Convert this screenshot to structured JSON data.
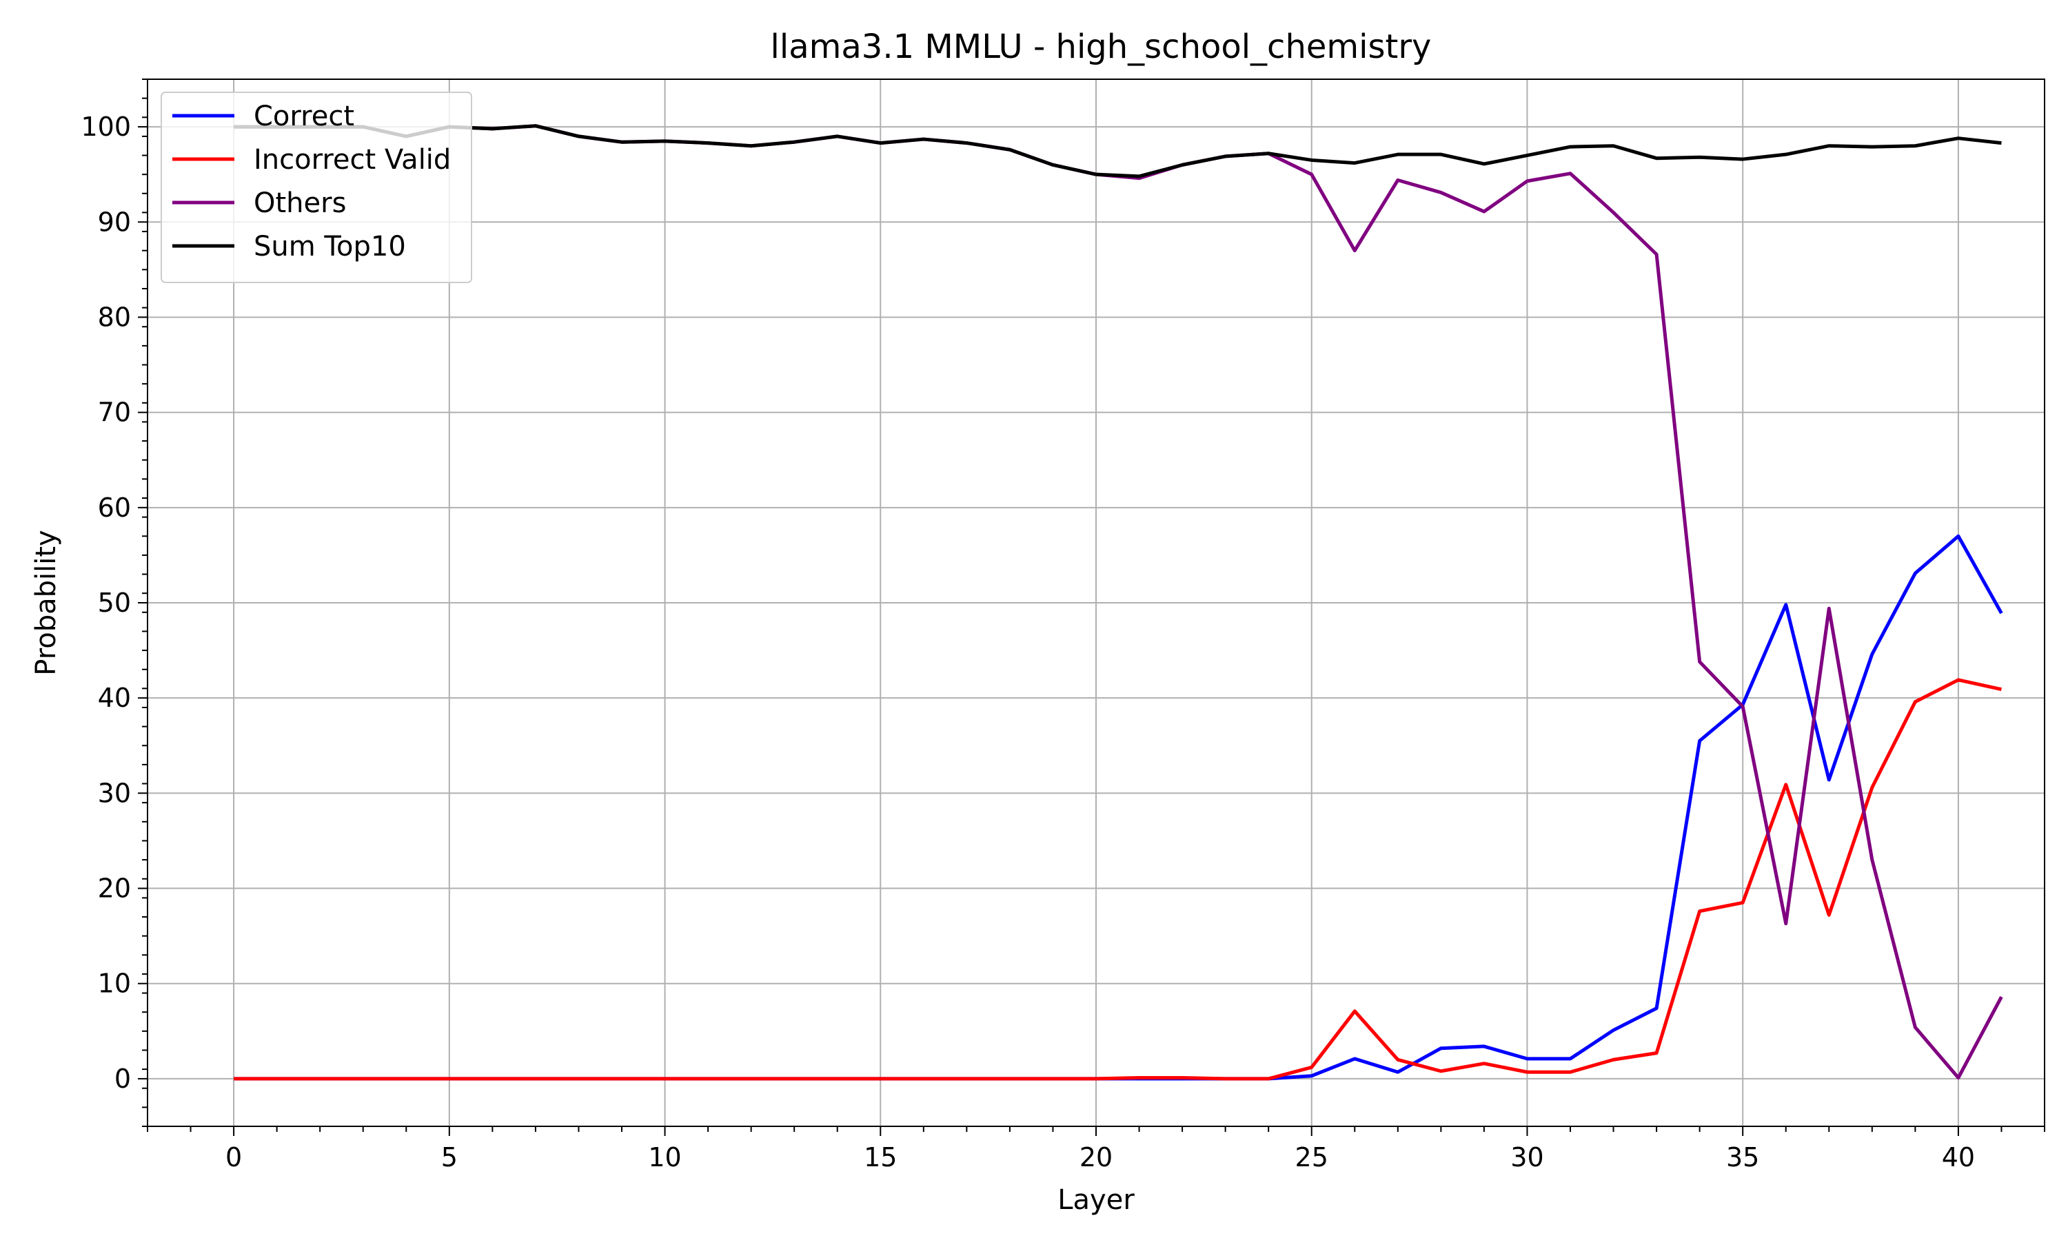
{
  "chart_data": {
    "type": "line",
    "title": "llama3.1 MMLU - high_school_chemistry",
    "xlabel": "Layer",
    "ylabel": "Probability",
    "xlim": [
      -2,
      42
    ],
    "ylim": [
      -5,
      105
    ],
    "xticks": [
      0,
      5,
      10,
      15,
      20,
      25,
      30,
      35,
      40
    ],
    "yticks": [
      0,
      10,
      20,
      30,
      40,
      50,
      60,
      70,
      80,
      90,
      100
    ],
    "grid": true,
    "legend_position": "top-left",
    "x": [
      0,
      1,
      2,
      3,
      4,
      5,
      6,
      7,
      8,
      9,
      10,
      11,
      12,
      13,
      14,
      15,
      16,
      17,
      18,
      19,
      20,
      21,
      22,
      23,
      24,
      25,
      26,
      27,
      28,
      29,
      30,
      31,
      32,
      33,
      34,
      35,
      36,
      37,
      38,
      39,
      40,
      41
    ],
    "series": [
      {
        "name": "Correct",
        "color": "#0000ff",
        "values": [
          0,
          0,
          0,
          0,
          0,
          0,
          0,
          0,
          0,
          0,
          0,
          0,
          0,
          0,
          0,
          0,
          0,
          0,
          0,
          0,
          0,
          0,
          0,
          0,
          0,
          0.3,
          2.1,
          0.7,
          3.2,
          3.4,
          2.1,
          2.1,
          5.1,
          7.4,
          35.5,
          39.3,
          49.8,
          31.4,
          44.6,
          53.1,
          57.0,
          48.9
        ]
      },
      {
        "name": "Incorrect Valid",
        "color": "#ff0000",
        "values": [
          0,
          0,
          0,
          0,
          0,
          0,
          0,
          0,
          0,
          0,
          0,
          0,
          0,
          0,
          0,
          0,
          0,
          0,
          0,
          0,
          0,
          0.1,
          0.1,
          0,
          0,
          1.2,
          7.1,
          2.0,
          0.8,
          1.6,
          0.7,
          0.7,
          2.0,
          2.7,
          17.6,
          18.5,
          30.9,
          17.2,
          30.6,
          39.6,
          41.9,
          40.9
        ]
      },
      {
        "name": "Others",
        "color": "#800080",
        "values": [
          100,
          100,
          100,
          100,
          99.0,
          100,
          99.8,
          100.1,
          99.0,
          98.4,
          98.5,
          98.3,
          98.0,
          98.4,
          99.0,
          98.3,
          98.7,
          98.3,
          97.6,
          96.0,
          95.0,
          94.6,
          96.0,
          96.9,
          97.2,
          95.0,
          87.0,
          94.4,
          93.1,
          91.1,
          94.3,
          95.1,
          91.0,
          86.6,
          43.8,
          39.1,
          16.3,
          49.4,
          23.0,
          5.4,
          0.1,
          8.6
        ]
      },
      {
        "name": "Sum Top10",
        "color": "#000000",
        "values": [
          100,
          100,
          100,
          100,
          99.0,
          100,
          99.8,
          100.1,
          99.0,
          98.4,
          98.5,
          98.3,
          98.0,
          98.4,
          99.0,
          98.3,
          98.7,
          98.3,
          97.6,
          96.0,
          95.0,
          94.8,
          96.0,
          96.9,
          97.2,
          96.5,
          96.2,
          97.1,
          97.1,
          96.1,
          97.0,
          97.9,
          98.0,
          96.7,
          96.8,
          96.6,
          97.1,
          98.0,
          97.9,
          98.0,
          98.8,
          98.3
        ]
      }
    ]
  }
}
